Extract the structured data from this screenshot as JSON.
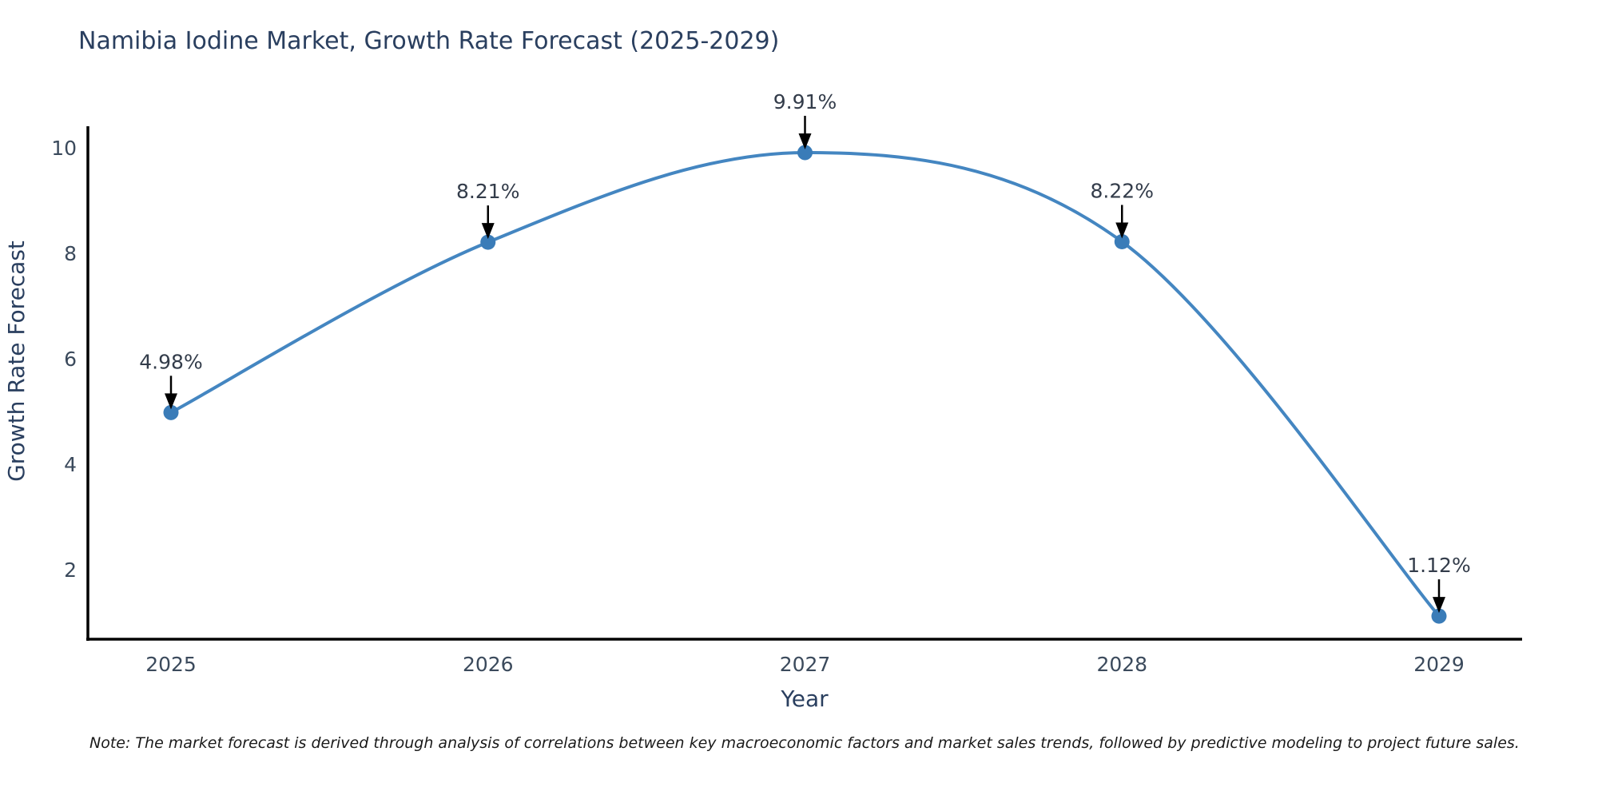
{
  "title": "Namibia Iodine Market, Growth Rate Forecast (2025-2029)",
  "note": "Note: The market forecast is derived through analysis of correlations between key macroeconomic factors and market sales trends, followed by predictive modeling to project future sales.",
  "chart_data": {
    "type": "line",
    "title": "Namibia Iodine Market, Growth Rate Forecast (2025-2029)",
    "x": [
      2025,
      2026,
      2027,
      2028,
      2029
    ],
    "series": [
      {
        "name": "Growth Rate Forecast",
        "values": [
          4.98,
          8.21,
          9.91,
          8.22,
          1.12
        ]
      }
    ],
    "point_labels": [
      "4.98%",
      "8.21%",
      "9.91%",
      "8.22%",
      "1.12%"
    ],
    "xlabel": "Year",
    "ylabel": "Growth Rate Forecast",
    "yticks": [
      2,
      4,
      6,
      8,
      10
    ],
    "xticks": [
      "2025",
      "2026",
      "2027",
      "2028",
      "2029"
    ],
    "ylim": [
      0.68,
      10.38
    ],
    "grid": false,
    "legend_position": "none",
    "line_shape": "spline",
    "annotation_arrows": true,
    "colors": {
      "line": "#4486c1",
      "marker": "#3a7cb8",
      "axis": "#000000",
      "arrow": "#000000",
      "title": "#2a3f5f",
      "tick_label": "#3b4a5c",
      "annotation_text": "#333c4a",
      "note_text": "#1a1a1a",
      "background": "#ffffff"
    }
  }
}
